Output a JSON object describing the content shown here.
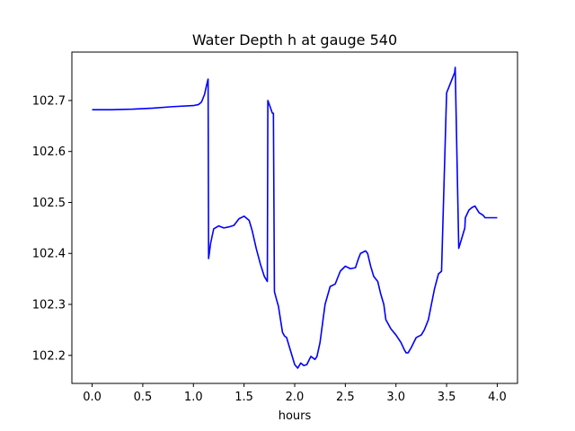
{
  "chart_data": {
    "type": "line",
    "title": "Water Depth h at gauge 540",
    "xlabel": "hours",
    "ylabel": "",
    "xlim": [
      -0.2,
      4.2
    ],
    "ylim": [
      102.145,
      102.795
    ],
    "xticks": [
      0.0,
      0.5,
      1.0,
      1.5,
      2.0,
      2.5,
      3.0,
      3.5,
      4.0
    ],
    "xtick_labels": [
      "0.0",
      "0.5",
      "1.0",
      "1.5",
      "2.0",
      "2.5",
      "3.0",
      "3.5",
      "4.0"
    ],
    "yticks": [
      102.2,
      102.3,
      102.4,
      102.5,
      102.6,
      102.7
    ],
    "ytick_labels": [
      "102.2",
      "102.3",
      "102.4",
      "102.5",
      "102.6",
      "102.7"
    ],
    "grid": false,
    "series": [
      {
        "color": "#0000ff",
        "x": [
          0.0,
          0.2,
          0.4,
          0.6,
          0.8,
          1.0,
          1.05,
          1.08,
          1.11,
          1.13,
          1.145,
          1.15,
          1.17,
          1.2,
          1.25,
          1.3,
          1.35,
          1.4,
          1.45,
          1.5,
          1.55,
          1.58,
          1.62,
          1.66,
          1.7,
          1.73,
          1.735,
          1.78,
          1.79,
          1.8,
          1.82,
          1.84,
          1.86,
          1.88,
          1.9,
          1.92,
          1.95,
          2.0,
          2.03,
          2.06,
          2.09,
          2.12,
          2.16,
          2.2,
          2.22,
          2.25,
          2.28,
          2.3,
          2.35,
          2.4,
          2.45,
          2.5,
          2.55,
          2.6,
          2.63,
          2.65,
          2.7,
          2.72,
          2.75,
          2.78,
          2.82,
          2.85,
          2.88,
          2.9,
          2.95,
          3.0,
          3.05,
          3.08,
          3.1,
          3.12,
          3.15,
          3.2,
          3.25,
          3.28,
          3.32,
          3.35,
          3.38,
          3.42,
          3.45,
          3.5,
          3.55,
          3.58,
          3.585,
          3.62,
          3.65,
          3.68,
          3.685,
          3.72,
          3.75,
          3.78,
          3.82,
          3.86,
          3.88,
          3.9,
          3.93,
          3.96,
          4.0
        ],
        "y": [
          102.682,
          102.682,
          102.683,
          102.685,
          102.688,
          102.69,
          102.692,
          102.697,
          102.712,
          102.73,
          102.742,
          102.39,
          102.42,
          102.448,
          102.454,
          102.45,
          102.452,
          102.455,
          102.468,
          102.473,
          102.465,
          102.445,
          102.41,
          102.38,
          102.355,
          102.345,
          102.7,
          102.675,
          102.675,
          102.325,
          102.31,
          102.296,
          102.27,
          102.245,
          102.238,
          102.235,
          102.215,
          102.182,
          102.175,
          102.185,
          102.18,
          102.182,
          102.198,
          102.192,
          102.198,
          102.225,
          102.27,
          102.3,
          102.335,
          102.34,
          102.365,
          102.375,
          102.37,
          102.372,
          102.39,
          102.4,
          102.405,
          102.4,
          102.375,
          102.355,
          102.345,
          102.32,
          102.3,
          102.27,
          102.252,
          102.24,
          102.225,
          102.212,
          102.205,
          102.205,
          102.215,
          102.235,
          102.24,
          102.25,
          102.27,
          102.3,
          102.33,
          102.36,
          102.365,
          102.715,
          102.74,
          102.755,
          102.765,
          102.41,
          102.43,
          102.45,
          102.47,
          102.485,
          102.49,
          102.493,
          102.48,
          102.475,
          102.47,
          102.47,
          102.47,
          102.47,
          102.47
        ]
      }
    ]
  }
}
